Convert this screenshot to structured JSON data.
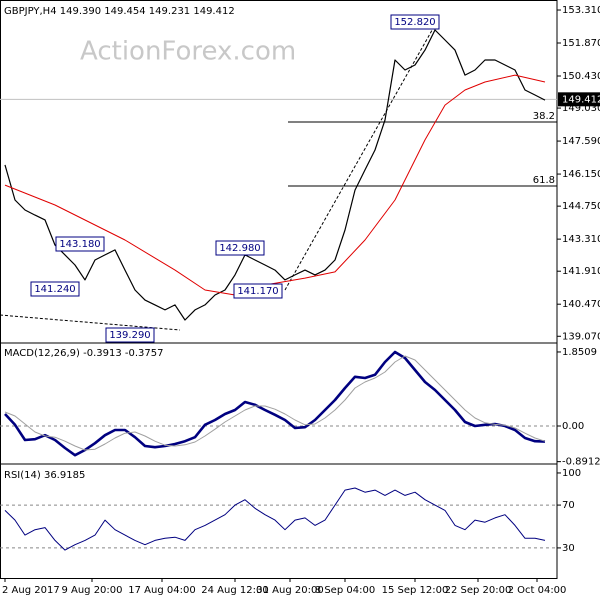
{
  "watermark": "ActionForex.com",
  "chart_data": [
    {
      "type": "line",
      "title": "GBPJPY,H4  149.390 149.454 149.231 149.412",
      "xlim": [
        -0.5,
        55.2
      ],
      "ylim": [
        138.82,
        153.66
      ],
      "yticks": [
        {
          "value": 153.31,
          "label": "153.310"
        },
        {
          "value": 151.87,
          "label": "151.870"
        },
        {
          "value": 150.43,
          "label": "150.430"
        },
        {
          "value": 149.03,
          "label": "149.030"
        },
        {
          "value": 147.59,
          "label": "147.590"
        },
        {
          "value": 146.15,
          "label": "146.150"
        },
        {
          "value": 144.75,
          "label": "144.750"
        },
        {
          "value": 143.31,
          "label": "143.310"
        },
        {
          "value": 141.91,
          "label": "141.910"
        },
        {
          "value": 140.47,
          "label": "140.470"
        },
        {
          "value": 139.07,
          "label": "139.070"
        }
      ],
      "last_price": 149.412,
      "fib_levels": [
        {
          "label": "38.2",
          "value": 148.42
        },
        {
          "label": "61.8",
          "value": 145.63
        }
      ],
      "annotations": [
        "152.820",
        "143.180",
        "142.980",
        "141.240",
        "141.170",
        "139.290"
      ],
      "series": [
        {
          "color": "#000000",
          "width": 1.2,
          "values": [
            146.55,
            145.02,
            144.58,
            144.36,
            144.15,
            143.05,
            142.62,
            142.18,
            141.53,
            142.4,
            142.62,
            142.84,
            141.96,
            141.09,
            140.65,
            140.44,
            140.22,
            140.44,
            139.78,
            140.22,
            140.44,
            140.87,
            141.09,
            141.75,
            142.62,
            142.4,
            142.18,
            141.96,
            141.53,
            141.75,
            141.96,
            141.75,
            141.96,
            142.4,
            143.71,
            145.45,
            146.33,
            147.2,
            148.51,
            151.13,
            150.69,
            150.91,
            151.56,
            152.44,
            152.0,
            151.56,
            150.47,
            150.69,
            151.13,
            151.13,
            150.91,
            150.69,
            149.82,
            149.6,
            149.38
          ]
        },
        {
          "color": "#e00000",
          "width": 1,
          "x": [
            0,
            5,
            12,
            17,
            20,
            23,
            26,
            30,
            33,
            36,
            39,
            42,
            44,
            46,
            48,
            51,
            54
          ],
          "values": [
            145.67,
            144.8,
            143.27,
            141.96,
            141.09,
            140.87,
            141.31,
            141.61,
            141.88,
            143.27,
            145.02,
            147.64,
            149.16,
            149.82,
            150.17,
            150.47,
            150.17
          ]
        }
      ]
    },
    {
      "type": "line",
      "title": "MACD(12,26,9) -0.3913 -0.3757",
      "xlim": [
        -0.5,
        55.2
      ],
      "ylim": [
        -0.9,
        2.05
      ],
      "yticks": [
        1.8509,
        {
          "value": 0,
          "label": "0.00"
        },
        -0.8912
      ],
      "levels": [
        0
      ],
      "series": [
        {
          "color": "#000080",
          "width": 2.6,
          "values": [
            0.3,
            0.03,
            -0.35,
            -0.33,
            -0.23,
            -0.35,
            -0.55,
            -0.73,
            -0.6,
            -0.43,
            -0.23,
            -0.1,
            -0.1,
            -0.28,
            -0.5,
            -0.53,
            -0.5,
            -0.45,
            -0.38,
            -0.28,
            0.03,
            0.15,
            0.3,
            0.4,
            0.6,
            0.53,
            0.4,
            0.28,
            0.15,
            -0.05,
            -0.03,
            0.15,
            0.4,
            0.65,
            0.95,
            1.23,
            1.2,
            1.28,
            1.6,
            1.85,
            1.7,
            1.4,
            1.1,
            0.9,
            0.65,
            0.4,
            0.1,
            0.0,
            0.03,
            0.05,
            0.0,
            -0.1,
            -0.3,
            -0.38,
            -0.39
          ]
        },
        {
          "color": "#a0a0a0",
          "width": 1,
          "values": [
            0.35,
            0.25,
            0.05,
            -0.15,
            -0.25,
            -0.28,
            -0.38,
            -0.5,
            -0.6,
            -0.58,
            -0.45,
            -0.3,
            -0.18,
            -0.15,
            -0.25,
            -0.38,
            -0.48,
            -0.5,
            -0.47,
            -0.4,
            -0.25,
            -0.08,
            0.1,
            0.25,
            0.4,
            0.5,
            0.5,
            0.42,
            0.3,
            0.15,
            0.03,
            0.05,
            0.2,
            0.4,
            0.65,
            0.95,
            1.1,
            1.2,
            1.35,
            1.6,
            1.75,
            1.65,
            1.4,
            1.15,
            0.9,
            0.65,
            0.4,
            0.2,
            0.08,
            0.04,
            0.02,
            -0.05,
            -0.18,
            -0.3,
            -0.38
          ]
        }
      ]
    },
    {
      "type": "line",
      "title": "RSI(14) 36.9185",
      "xlim": [
        -0.5,
        55.2
      ],
      "ylim": [
        1.9,
        106.5
      ],
      "yticks": [
        100,
        70,
        30
      ],
      "levels": [
        70,
        30
      ],
      "xticks": [
        {
          "value": 0,
          "label": "2 Aug 2017"
        },
        {
          "value": 8.7,
          "label": "9 Aug 20:00"
        },
        {
          "value": 15.7,
          "label": "17 Aug 04:00"
        },
        {
          "value": 23,
          "label": "24 Aug 12:00"
        },
        {
          "value": 28.5,
          "label": "31 Aug 20:00"
        },
        {
          "value": 34,
          "label": "8 Sep 04:00"
        },
        {
          "value": 41,
          "label": "15 Sep 12:00"
        },
        {
          "value": 47.3,
          "label": "22 Sep 20:00"
        },
        {
          "value": 53.2,
          "label": "2 Oct 04:00"
        }
      ],
      "series": [
        {
          "color": "#000080",
          "width": 1,
          "values": [
            65,
            56,
            42,
            47,
            49,
            37,
            28,
            33,
            37,
            42,
            56,
            47,
            42,
            37,
            33,
            37,
            39,
            40,
            37,
            47,
            51,
            56,
            61,
            70,
            75,
            67,
            61,
            56,
            47,
            56,
            58,
            51,
            56,
            70,
            84,
            86,
            82,
            84,
            79,
            84,
            79,
            82,
            75,
            70,
            65,
            51,
            47,
            56,
            54,
            58,
            61,
            51,
            39,
            39,
            37
          ]
        }
      ]
    }
  ]
}
